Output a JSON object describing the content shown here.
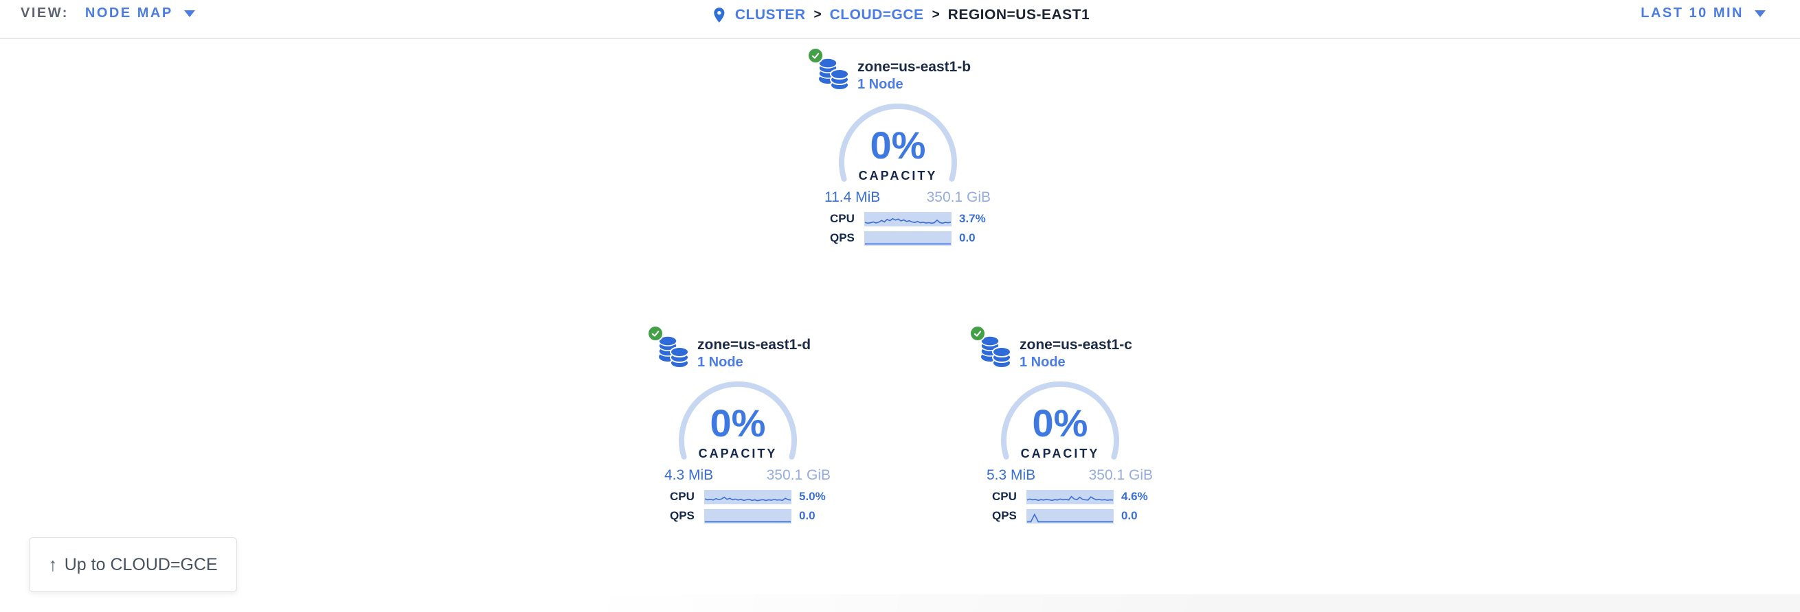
{
  "view": {
    "label": "VIEW:",
    "value": "NODE MAP"
  },
  "breadcrumb": {
    "separator": ">",
    "items": [
      {
        "label": "CLUSTER"
      },
      {
        "label": "CLOUD=GCE"
      },
      {
        "label": "REGION=US-EAST1"
      }
    ]
  },
  "time_selector": {
    "value": "LAST 10 MIN"
  },
  "zones": [
    {
      "name": "zone=us-east1-b",
      "nodes": "1 Node",
      "capacity_pct": "0%",
      "capacity_label": "CAPACITY",
      "used": "11.4 MiB",
      "total": "350.1 GiB",
      "cpu_label": "CPU",
      "cpu_value": "3.7%",
      "qps_label": "QPS",
      "qps_value": "0.0",
      "cpu_spark": [
        0.25,
        0.18,
        0.22,
        0.3,
        0.2,
        0.28,
        0.45,
        0.3,
        0.55,
        0.42,
        0.62,
        0.48,
        0.58,
        0.4,
        0.5,
        0.35,
        0.42,
        0.3,
        0.25,
        0.35,
        0.22,
        0.28,
        0.2,
        0.24,
        0.18,
        0.22,
        0.48,
        0.25,
        0.18,
        0.26,
        0.22,
        0.28
      ],
      "qps_spark": [
        0.03,
        0.03
      ]
    },
    {
      "name": "zone=us-east1-d",
      "nodes": "1 Node",
      "capacity_pct": "0%",
      "capacity_label": "CAPACITY",
      "used": "4.3 MiB",
      "total": "350.1 GiB",
      "cpu_label": "CPU",
      "cpu_value": "5.0%",
      "qps_label": "QPS",
      "qps_value": "0.0",
      "cpu_spark": [
        0.4,
        0.3,
        0.35,
        0.28,
        0.42,
        0.32,
        0.38,
        0.55,
        0.35,
        0.45,
        0.3,
        0.38,
        0.28,
        0.35,
        0.25,
        0.3,
        0.35,
        0.25,
        0.3,
        0.22,
        0.28,
        0.32,
        0.24,
        0.3,
        0.26,
        0.34,
        0.28,
        0.3,
        0.25,
        0.45,
        0.32,
        0.28
      ],
      "qps_spark": [
        0.03,
        0.03
      ]
    },
    {
      "name": "zone=us-east1-c",
      "nodes": "1 Node",
      "capacity_pct": "0%",
      "capacity_label": "CAPACITY",
      "used": "5.3 MiB",
      "total": "350.1 GiB",
      "cpu_label": "CPU",
      "cpu_value": "4.6%",
      "qps_label": "QPS",
      "qps_value": "0.0",
      "cpu_spark": [
        0.28,
        0.38,
        0.3,
        0.35,
        0.25,
        0.32,
        0.28,
        0.35,
        0.3,
        0.25,
        0.32,
        0.28,
        0.38,
        0.3,
        0.35,
        0.28,
        0.62,
        0.38,
        0.32,
        0.55,
        0.35,
        0.3,
        0.28,
        0.58,
        0.42,
        0.3,
        0.34,
        0.28,
        0.32,
        0.26,
        0.3,
        0.28
      ],
      "qps_spark": [
        0.03,
        0.03,
        0.75,
        0.03,
        0.03,
        0.03,
        0.03,
        0.03,
        0.03,
        0.03,
        0.03,
        0.03,
        0.03,
        0.03,
        0.03,
        0.03,
        0.03,
        0.03,
        0.03,
        0.03,
        0.03,
        0.03,
        0.03,
        0.03
      ]
    }
  ],
  "up_button": {
    "arrow": "↑",
    "label": "Up to CLOUD=GCE"
  },
  "colors": {
    "accent_blue": "#3e78e1",
    "link_blue": "#4a7ce2",
    "light_blue": "#94acdf",
    "gauge_arc": "#c7d7f2",
    "spark_bg": "#c8d7f2",
    "spark_line": "#3b6fd4",
    "navy": "#14274b",
    "green": "#43a047"
  }
}
